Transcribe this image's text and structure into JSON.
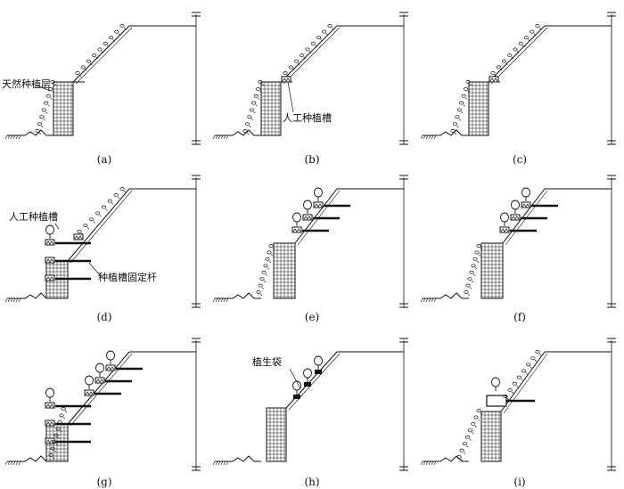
{
  "figure": {
    "panels": [
      {
        "caption": "(a)",
        "type": "vegetation",
        "leader_label": "天然种植层"
      },
      {
        "caption": "(b)",
        "type": "vegetation_trough",
        "leader_label": "人工种植槽"
      },
      {
        "caption": "(c)",
        "type": "vegetation_trough",
        "leader_label": ""
      },
      {
        "caption": "(d)",
        "type": "troughs_rods_low",
        "leader_label": "人工种植槽",
        "leader_label_2": "种植槽固定杆"
      },
      {
        "caption": "(e)",
        "type": "troughs_rods_upper",
        "leader_label": ""
      },
      {
        "caption": "(f)",
        "type": "troughs_rods_upper",
        "leader_label": ""
      },
      {
        "caption": "(g)",
        "type": "troughs_rods_full",
        "leader_label": ""
      },
      {
        "caption": "(h)",
        "type": "planting_bags",
        "leader_label": "植生袋"
      },
      {
        "caption": "(i)",
        "type": "large_trough",
        "leader_label": ""
      }
    ],
    "colors": {
      "line": "#111111",
      "background": "#ffffff"
    }
  }
}
